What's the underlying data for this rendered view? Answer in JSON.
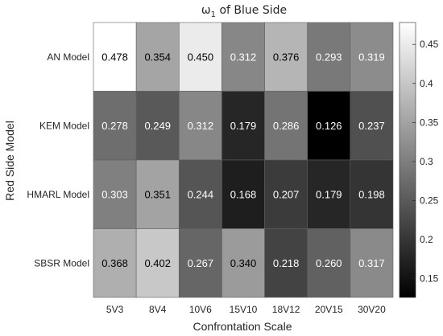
{
  "chart_data": {
    "type": "heatmap",
    "title": "ω₁ of Blue Side",
    "xlabel": "Confrontation Scale",
    "ylabel": "Red Side Model",
    "x_categories": [
      "5V3",
      "8V4",
      "10V6",
      "15V10",
      "18V12",
      "20V15",
      "30V20"
    ],
    "y_categories": [
      "AN Model",
      "KEM Model",
      "HMARL Model",
      "SBSR Model"
    ],
    "values": [
      [
        0.478,
        0.354,
        0.45,
        0.312,
        0.376,
        0.293,
        0.319
      ],
      [
        0.278,
        0.249,
        0.312,
        0.179,
        0.286,
        0.126,
        0.237
      ],
      [
        0.303,
        0.351,
        0.244,
        0.168,
        0.207,
        0.179,
        0.198
      ],
      [
        0.368,
        0.402,
        0.267,
        0.34,
        0.218,
        0.26,
        0.317
      ]
    ],
    "value_labels": [
      [
        "0.478",
        "0.354",
        "0.450",
        "0.312",
        "0.376",
        "0.293",
        "0.319"
      ],
      [
        "0.278",
        "0.249",
        "0.312",
        "0.179",
        "0.286",
        "0.126",
        "0.237"
      ],
      [
        "0.303",
        "0.351",
        "0.244",
        "0.168",
        "0.207",
        "0.179",
        "0.198"
      ],
      [
        "0.368",
        "0.402",
        "0.267",
        "0.340",
        "0.218",
        "0.260",
        "0.317"
      ]
    ],
    "colormap": "gray",
    "colorbar": {
      "range": [
        0.126,
        0.478
      ],
      "ticks": [
        0.15,
        0.2,
        0.25,
        0.3,
        0.35,
        0.4,
        0.45
      ],
      "tick_labels": [
        "0.15",
        "0.2",
        "0.25",
        "0.3",
        "0.35",
        "0.4",
        "0.45"
      ]
    }
  }
}
